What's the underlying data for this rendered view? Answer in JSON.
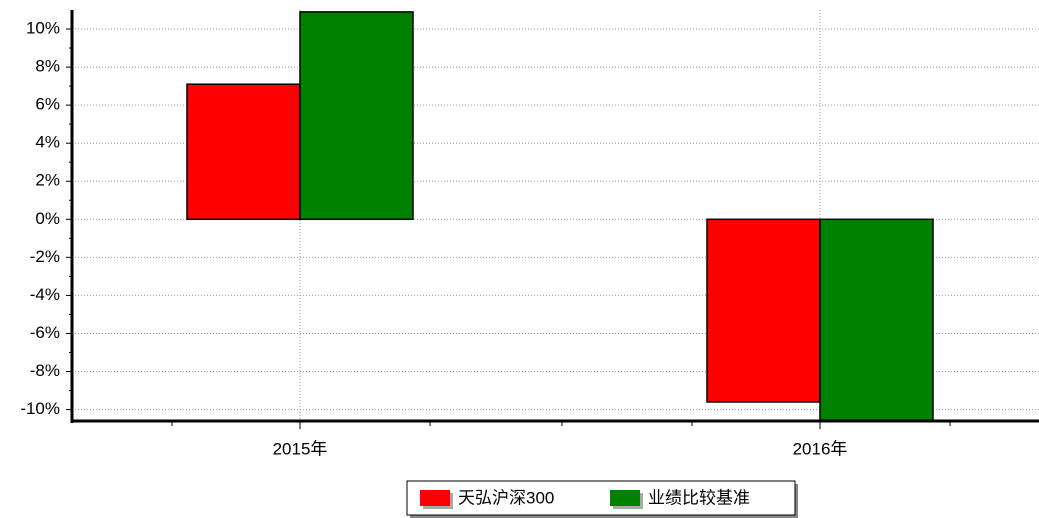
{
  "chart_data": {
    "type": "bar",
    "categories": [
      "2015年",
      "2016年"
    ],
    "series": [
      {
        "name": "天弘沪深300",
        "color": "#ff0000",
        "values": [
          7.1,
          -9.6
        ]
      },
      {
        "name": "业绩比较基准",
        "color": "#008000",
        "values": [
          10.9,
          -10.6
        ]
      }
    ],
    "ylim": [
      -10.6,
      11
    ],
    "yticks": [
      {
        "value": -10,
        "label": "-10%"
      },
      {
        "value": -8,
        "label": "-8%"
      },
      {
        "value": -6,
        "label": "-6%"
      },
      {
        "value": -4,
        "label": "-4%"
      },
      {
        "value": -2,
        "label": "-2%"
      },
      {
        "value": 0,
        "label": "0%"
      },
      {
        "value": 2,
        "label": "2%"
      },
      {
        "value": 4,
        "label": "4%"
      },
      {
        "value": 6,
        "label": "6%"
      },
      {
        "value": 8,
        "label": "8%"
      },
      {
        "value": 10,
        "label": "10%"
      }
    ],
    "grid": true,
    "legend": "bottom"
  }
}
